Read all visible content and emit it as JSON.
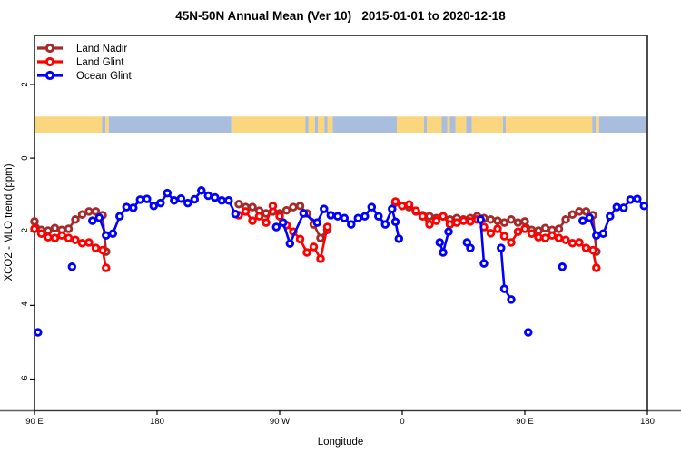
{
  "chart_data": {
    "type": "line",
    "title": "45N-50N Annual Mean (Ver 10)   2015-01-01 to 2020-12-18",
    "xlabel": "Longitude",
    "ylabel": "XCO2 - MLO trend (ppm)",
    "x_range": [
      90,
      540
    ],
    "y_range": [
      -6.85,
      3.33
    ],
    "x_axis": {
      "note": "longitude unwrapped eastward from 90E; axis wraps past the dateline and repeats 90E-180",
      "ticks": [
        {
          "pos": 90,
          "label": "90 E"
        },
        {
          "pos": 180,
          "label": "180"
        },
        {
          "pos": 270,
          "label": "90 W"
        },
        {
          "pos": 360,
          "label": "0"
        },
        {
          "pos": 450,
          "label": "90 E"
        },
        {
          "pos": 540,
          "label": "180"
        }
      ]
    },
    "y_axis": {
      "ticks": [
        {
          "value": 2,
          "label": "2"
        },
        {
          "value": 0,
          "label": "0"
        },
        {
          "value": -2,
          "label": "-2"
        },
        {
          "value": -4,
          "label": "-4"
        },
        {
          "value": -6,
          "label": "-6"
        }
      ]
    },
    "map_strip": {
      "land_color": "#FAD67F",
      "ocean_color": "#A9BDDF",
      "y_range": [
        0.69,
        1.13
      ],
      "segments": [
        [
          90,
          139.5,
          "land"
        ],
        [
          139.5,
          142,
          "ocean"
        ],
        [
          142,
          144.5,
          "land"
        ],
        [
          144.5,
          234.5,
          "ocean"
        ],
        [
          234.5,
          289,
          "land"
        ],
        [
          289,
          291,
          "ocean"
        ],
        [
          291,
          296,
          "land"
        ],
        [
          296,
          298,
          "ocean"
        ],
        [
          298,
          303,
          "land"
        ],
        [
          303,
          305,
          "ocean"
        ],
        [
          305,
          309,
          "land"
        ],
        [
          309,
          356,
          "ocean"
        ],
        [
          356,
          376,
          "land"
        ],
        [
          376,
          378,
          "ocean"
        ],
        [
          378,
          389,
          "land"
        ],
        [
          389,
          393,
          "ocean"
        ],
        [
          393,
          395,
          "land"
        ],
        [
          395,
          399,
          "ocean"
        ],
        [
          399,
          407,
          "land"
        ],
        [
          407,
          411,
          "ocean"
        ],
        [
          411,
          434,
          "land"
        ],
        [
          434,
          436,
          "ocean"
        ],
        [
          436,
          499.5,
          "land"
        ],
        [
          499.5,
          502,
          "ocean"
        ],
        [
          502,
          504.5,
          "land"
        ],
        [
          504.5,
          540,
          "ocean"
        ]
      ]
    },
    "series": [
      {
        "name": "Land Nadir",
        "color": "#A52A2A",
        "segments": [
          [
            [
              90,
              -1.72
            ],
            [
              95,
              -1.95
            ],
            [
              100,
              -1.97
            ],
            [
              105,
              -1.9
            ],
            [
              110,
              -1.95
            ],
            [
              115,
              -1.92
            ],
            [
              120,
              -1.67
            ],
            [
              125,
              -1.53
            ],
            [
              130,
              -1.45
            ],
            [
              135,
              -1.45
            ],
            [
              140,
              -1.55
            ],
            [
              142.5,
              -2.54
            ]
          ],
          [
            [
              240,
              -1.25
            ],
            [
              245,
              -1.33
            ],
            [
              250,
              -1.33
            ],
            [
              255,
              -1.43
            ],
            [
              260,
              -1.5
            ],
            [
              265,
              -1.45
            ],
            [
              270,
              -1.5
            ],
            [
              275,
              -1.42
            ],
            [
              280,
              -1.33
            ],
            [
              285,
              -1.3
            ],
            [
              290,
              -1.5
            ],
            [
              295,
              -1.8
            ],
            [
              300,
              -2.17
            ],
            [
              305,
              -1.95
            ]
          ],
          [
            [
              355,
              -1.21
            ],
            [
              360,
              -1.3
            ],
            [
              365,
              -1.33
            ],
            [
              370,
              -1.45
            ],
            [
              375,
              -1.55
            ],
            [
              380,
              -1.58
            ],
            [
              385,
              -1.63
            ],
            [
              390,
              -1.58
            ],
            [
              395,
              -1.67
            ],
            [
              400,
              -1.63
            ],
            [
              405,
              -1.67
            ],
            [
              410,
              -1.63
            ],
            [
              415,
              -1.58
            ],
            [
              420,
              -1.63
            ],
            [
              425,
              -1.67
            ],
            [
              430,
              -1.7
            ],
            [
              435,
              -1.75
            ],
            [
              440,
              -1.67
            ],
            [
              445,
              -1.75
            ],
            [
              450,
              -1.72
            ],
            [
              455,
              -1.95
            ],
            [
              460,
              -1.97
            ],
            [
              465,
              -1.9
            ],
            [
              470,
              -1.95
            ],
            [
              475,
              -1.92
            ],
            [
              480,
              -1.67
            ],
            [
              485,
              -1.53
            ],
            [
              490,
              -1.45
            ],
            [
              495,
              -1.45
            ],
            [
              500,
              -1.55
            ],
            [
              502.5,
              -2.54
            ]
          ]
        ]
      },
      {
        "name": "Land Glint",
        "color": "#FF0000",
        "segments": [
          [
            [
              90,
              -1.92
            ],
            [
              95,
              -2.05
            ],
            [
              100,
              -2.15
            ],
            [
              105,
              -2.17
            ],
            [
              110,
              -2.1
            ],
            [
              115,
              -2.17
            ],
            [
              120,
              -2.22
            ],
            [
              125,
              -2.31
            ],
            [
              130,
              -2.29
            ],
            [
              135,
              -2.44
            ],
            [
              140,
              -2.5
            ],
            [
              142.5,
              -2.98
            ]
          ],
          [
            [
              240,
              -1.55
            ],
            [
              245,
              -1.45
            ],
            [
              250,
              -1.7
            ],
            [
              255,
              -1.58
            ],
            [
              260,
              -1.75
            ],
            [
              265,
              -1.3
            ],
            [
              270,
              -1.58
            ],
            [
              275,
              -1.82
            ],
            [
              280,
              -2.0
            ],
            [
              285,
              -2.2
            ],
            [
              290,
              -2.56
            ],
            [
              295,
              -2.41
            ],
            [
              300,
              -2.73
            ],
            [
              305,
              -1.87
            ]
          ],
          [
            [
              355,
              -1.18
            ],
            [
              360,
              -1.3
            ],
            [
              365,
              -1.26
            ],
            [
              370,
              -1.43
            ],
            [
              375,
              -1.58
            ],
            [
              380,
              -1.8
            ],
            [
              385,
              -1.7
            ],
            [
              390,
              -1.58
            ],
            [
              395,
              -1.8
            ],
            [
              400,
              -1.75
            ],
            [
              405,
              -1.7
            ],
            [
              410,
              -1.72
            ],
            [
              415,
              -1.67
            ],
            [
              420,
              -1.87
            ],
            [
              425,
              -2.04
            ],
            [
              430,
              -1.92
            ],
            [
              435,
              -2.12
            ],
            [
              440,
              -2.29
            ],
            [
              445,
              -2.0
            ],
            [
              450,
              -1.92
            ],
            [
              455,
              -2.05
            ],
            [
              460,
              -2.15
            ],
            [
              465,
              -2.17
            ],
            [
              470,
              -2.1
            ],
            [
              475,
              -2.17
            ],
            [
              480,
              -2.22
            ],
            [
              485,
              -2.31
            ],
            [
              490,
              -2.29
            ],
            [
              495,
              -2.44
            ],
            [
              500,
              -2.5
            ],
            [
              502.5,
              -2.98
            ]
          ]
        ]
      },
      {
        "name": "Ocean Glint",
        "color": "#0000FF",
        "segments": [
          [
            [
              92.5,
              -4.73
            ]
          ],
          [
            [
              117.5,
              -2.95
            ]
          ],
          [
            [
              132.5,
              -1.7
            ],
            [
              137.5,
              -1.62
            ],
            [
              142.5,
              -2.1
            ],
            [
              147.5,
              -2.05
            ],
            [
              152.5,
              -1.58
            ],
            [
              157.5,
              -1.33
            ],
            [
              162.5,
              -1.35
            ],
            [
              167.5,
              -1.13
            ],
            [
              172.5,
              -1.11
            ],
            [
              177.5,
              -1.3
            ],
            [
              182.5,
              -1.22
            ],
            [
              187.5,
              -0.95
            ],
            [
              192.5,
              -1.15
            ],
            [
              197.5,
              -1.1
            ],
            [
              202.5,
              -1.22
            ],
            [
              207.5,
              -1.12
            ],
            [
              212.5,
              -0.88
            ],
            [
              217.5,
              -1.02
            ],
            [
              222.5,
              -1.07
            ],
            [
              227.5,
              -1.15
            ],
            [
              232.5,
              -1.15
            ],
            [
              237.5,
              -1.52
            ]
          ],
          [
            [
              267.5,
              -1.87
            ],
            [
              272.5,
              -1.75
            ],
            [
              277.5,
              -2.32
            ],
            [
              287.5,
              -1.5
            ],
            [
              297.5,
              -1.75
            ],
            [
              302.5,
              -1.38
            ],
            [
              307.5,
              -1.55
            ],
            [
              312.5,
              -1.58
            ],
            [
              317.5,
              -1.63
            ],
            [
              322.5,
              -1.8
            ],
            [
              327.5,
              -1.63
            ],
            [
              332.5,
              -1.58
            ],
            [
              337.5,
              -1.33
            ],
            [
              342.5,
              -1.58
            ],
            [
              347.5,
              -1.8
            ],
            [
              352.5,
              -1.38
            ],
            [
              355,
              -1.73
            ],
            [
              357.5,
              -2.19
            ]
          ],
          [
            [
              387.5,
              -2.29
            ],
            [
              390,
              -2.56
            ],
            [
              394,
              -2.0
            ]
          ],
          [
            [
              407.5,
              -2.29
            ],
            [
              410,
              -2.44
            ]
          ],
          [
            [
              417.5,
              -1.67
            ],
            [
              420,
              -2.86
            ]
          ],
          [
            [
              432.5,
              -2.44
            ],
            [
              435,
              -3.55
            ],
            [
              440,
              -3.84
            ]
          ],
          [
            [
              452.5,
              -4.73
            ]
          ],
          [
            [
              477.5,
              -2.95
            ]
          ],
          [
            [
              492.5,
              -1.7
            ],
            [
              497.5,
              -1.62
            ],
            [
              502.5,
              -2.1
            ],
            [
              507.5,
              -2.05
            ],
            [
              512.5,
              -1.58
            ],
            [
              517.5,
              -1.33
            ],
            [
              522.5,
              -1.35
            ],
            [
              527.5,
              -1.13
            ],
            [
              532.5,
              -1.11
            ],
            [
              537.5,
              -1.3
            ]
          ]
        ]
      }
    ]
  }
}
